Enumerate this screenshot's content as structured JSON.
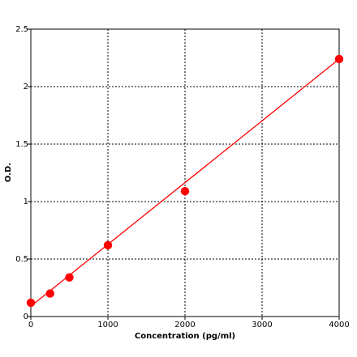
{
  "chart_data": {
    "type": "scatter",
    "title": "",
    "xlabel": "Concentration (pg/ml)",
    "ylabel": "O.D.",
    "xlim": [
      0,
      4000
    ],
    "ylim": [
      0,
      2.5
    ],
    "x_ticks": [
      0,
      1000,
      2000,
      3000,
      4000
    ],
    "x_tick_labels": [
      "0",
      "1000",
      "2000",
      "3000",
      "4000"
    ],
    "y_ticks": [
      0,
      0.5,
      1,
      1.5,
      2,
      2.5
    ],
    "y_tick_labels": [
      "0",
      "0.5",
      "1",
      "1.5",
      "2",
      "2.5"
    ],
    "grid": true,
    "grid_style": "dotted",
    "series": [
      {
        "x": [
          0,
          250,
          500,
          1000,
          2000,
          4000
        ],
        "y": [
          0.12,
          0.2,
          0.34,
          0.62,
          1.09,
          2.24
        ],
        "color": "#ff0000",
        "marker": "circle"
      }
    ],
    "fit_line": {
      "x": [
        0,
        4000
      ],
      "y": [
        0.09,
        2.24
      ],
      "color": "#ff0000"
    }
  }
}
